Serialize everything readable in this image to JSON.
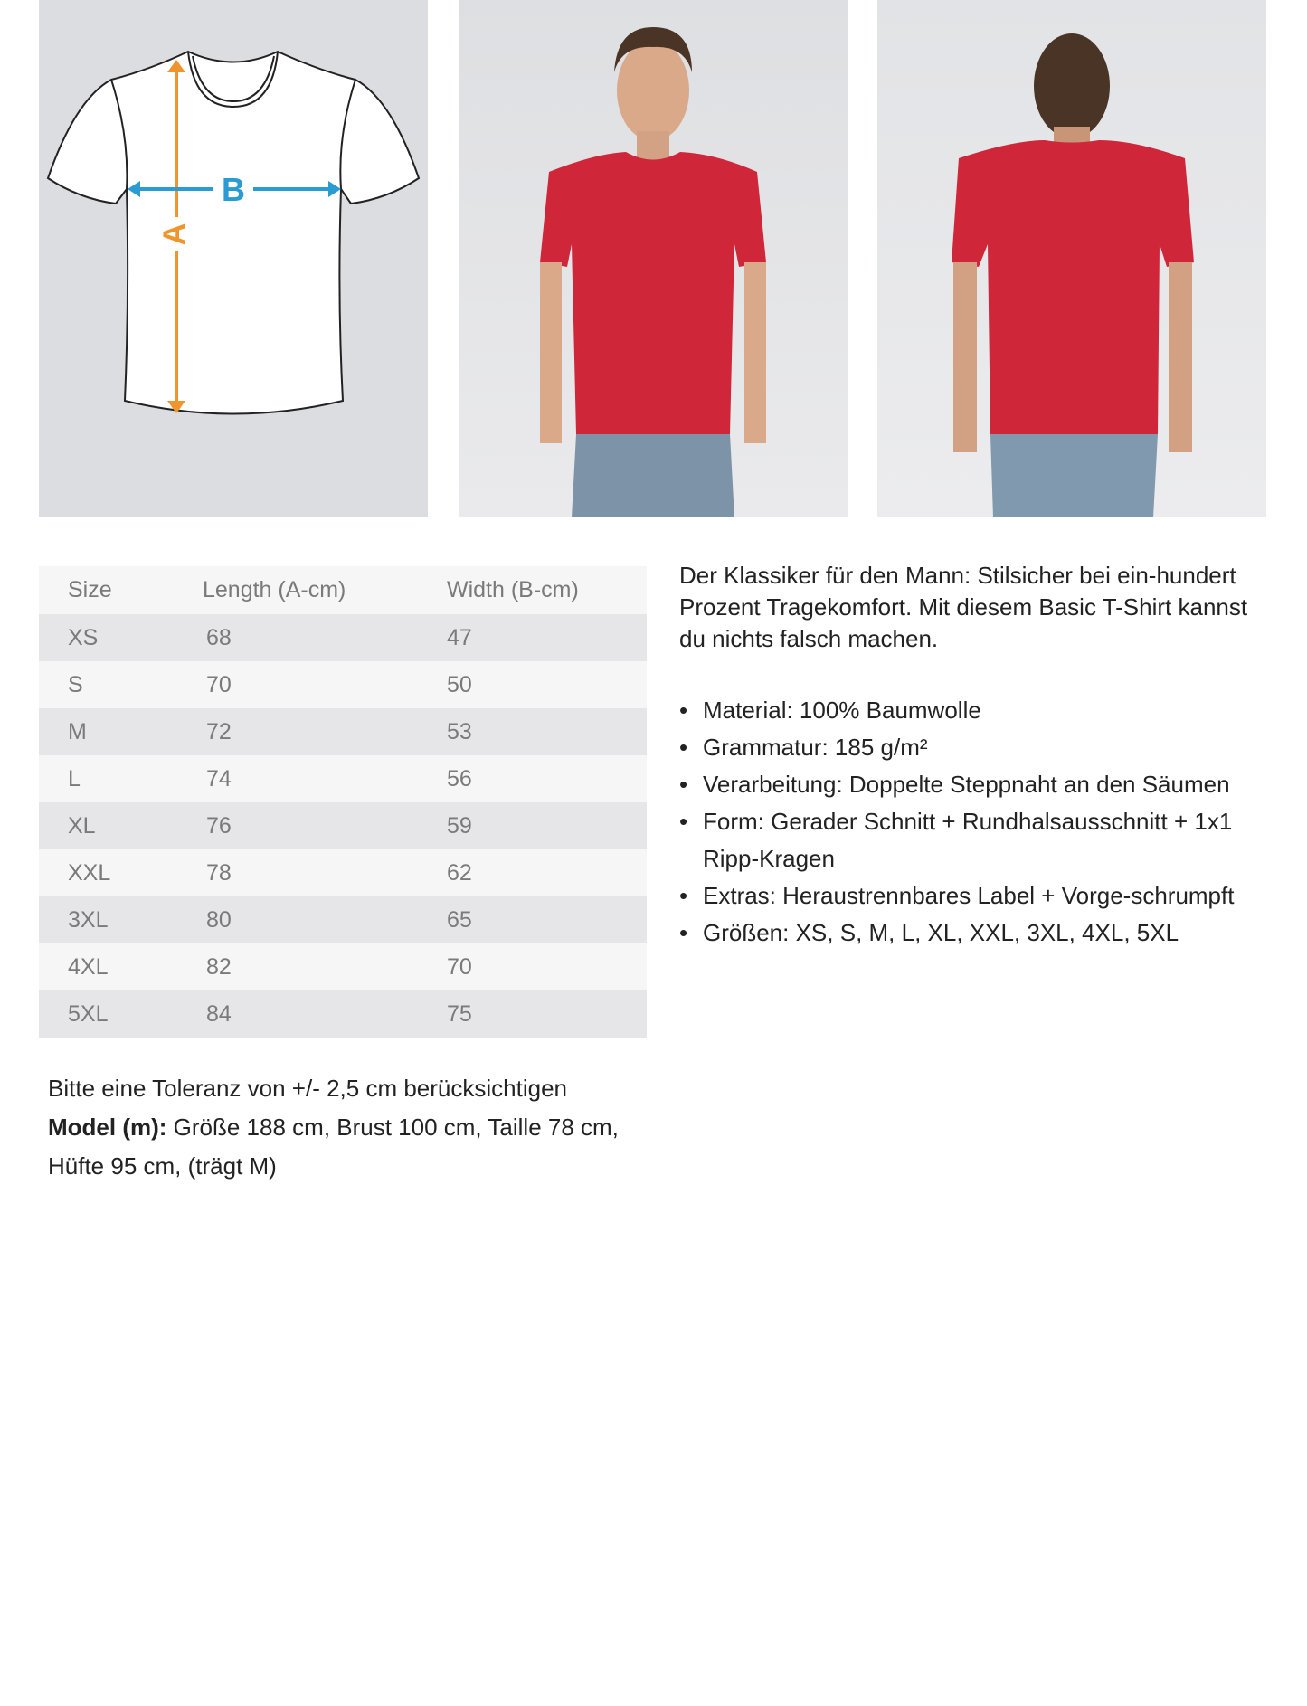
{
  "images": {
    "diagram": {
      "label_a": "A",
      "label_b": "B",
      "color_a": "#f0952e",
      "color_b": "#2a9bd3"
    },
    "front_photo": {
      "shirt_color": "#d0263a"
    },
    "back_photo": {
      "shirt_color": "#d0263a"
    }
  },
  "size_table": {
    "headers": [
      "Size",
      "Length (A-cm)",
      "Width (B-cm)"
    ],
    "rows": [
      [
        "XS",
        "68",
        "47"
      ],
      [
        "S",
        "70",
        "50"
      ],
      [
        "M",
        "72",
        "53"
      ],
      [
        "L",
        "74",
        "56"
      ],
      [
        "XL",
        "76",
        "59"
      ],
      [
        "XXL",
        "78",
        "62"
      ],
      [
        "3XL",
        "80",
        "65"
      ],
      [
        "4XL",
        "82",
        "70"
      ],
      [
        "5XL",
        "84",
        "75"
      ]
    ]
  },
  "description": "Der Klassiker für den Mann: Stilsicher bei ein-hundert Prozent Tragekomfort. Mit diesem Basic T-Shirt kannst du nichts falsch machen.",
  "features": [
    "Material: 100% Baumwolle",
    "Grammatur: 185 g/m²",
    "Verarbeitung: Doppelte Steppnaht an den Säumen",
    "Form: Gerader Schnitt + Rundhalsausschnitt + 1x1 Ripp-Kragen",
    "Extras: Heraustrennbares Label + Vorge-schrumpft",
    "Größen: XS, S, M, L, XL, XXL, 3XL, 4XL, 5XL"
  ],
  "bullet": "•",
  "notes": {
    "tolerance": "Bitte eine Toleranz von +/- 2,5 cm berücksichtigen",
    "model_label": "Model (m):",
    "model_text": " Größe 188 cm, Brust 100 cm, Taille 78 cm, Hüfte 95 cm, (trägt M)"
  }
}
